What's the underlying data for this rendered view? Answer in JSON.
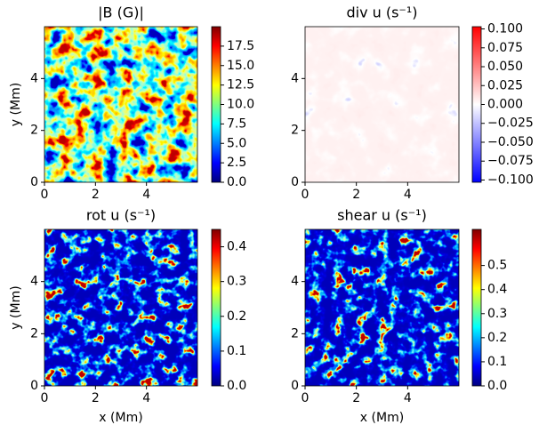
{
  "chart_data": [
    {
      "type": "heatmap",
      "title": "|B (G)|",
      "ylabel": "y (Mm)",
      "colormap": "jet",
      "xlim": [
        0,
        6
      ],
      "xticks": [
        0,
        2,
        4
      ],
      "ylim": [
        0,
        6
      ],
      "yticks": [
        0,
        2,
        4
      ],
      "clim": [
        0,
        20
      ],
      "cticks": [
        {
          "value": 0,
          "label": "0.0"
        },
        {
          "value": 2.5,
          "label": "2.5"
        },
        {
          "value": 5,
          "label": "5.0"
        },
        {
          "value": 7.5,
          "label": "7.5"
        },
        {
          "value": 10,
          "label": "10.0"
        },
        {
          "value": 12.5,
          "label": "12.5"
        },
        {
          "value": 15,
          "label": "15.0"
        },
        {
          "value": 17.5,
          "label": "17.5"
        }
      ]
    },
    {
      "type": "heatmap",
      "title": "div u (s⁻¹)",
      "colormap": "bwr",
      "xlim": [
        0,
        6
      ],
      "xticks": [
        0,
        2,
        4
      ],
      "ylim": [
        0,
        6
      ],
      "yticks": [
        0,
        2,
        4
      ],
      "clim": [
        -0.103,
        0.103
      ],
      "cticks": [
        {
          "value": -0.1,
          "label": "−0.100"
        },
        {
          "value": -0.075,
          "label": "−0.075"
        },
        {
          "value": -0.05,
          "label": "−0.050"
        },
        {
          "value": -0.025,
          "label": "−0.025"
        },
        {
          "value": 0,
          "label": "0.000"
        },
        {
          "value": 0.025,
          "label": "0.025"
        },
        {
          "value": 0.05,
          "label": "0.050"
        },
        {
          "value": 0.075,
          "label": "0.075"
        },
        {
          "value": 0.1,
          "label": "0.100"
        }
      ]
    },
    {
      "type": "heatmap",
      "title": "rot u (s⁻¹)",
      "ylabel": "y (Mm)",
      "xlabel": "x (Mm)",
      "colormap": "jet",
      "xlim": [
        0,
        6
      ],
      "xticks": [
        0,
        2,
        4
      ],
      "ylim": [
        0,
        6
      ],
      "yticks": [
        0,
        2,
        4
      ],
      "clim": [
        0,
        0.45
      ],
      "cticks": [
        {
          "value": 0,
          "label": "0.0"
        },
        0.1,
        0.2,
        0.3,
        0.4
      ]
    },
    {
      "type": "heatmap",
      "title": "shear u (s⁻¹)",
      "xlabel": "x (Mm)",
      "colormap": "jet",
      "xlim": [
        0,
        6
      ],
      "xticks": [
        0,
        2,
        4
      ],
      "ylim": [
        0,
        6
      ],
      "yticks": [
        0,
        2,
        4
      ],
      "clim": [
        0,
        0.65
      ],
      "cticks": [
        {
          "value": 0,
          "label": "0.0"
        },
        0.1,
        0.2,
        0.3,
        0.4,
        0.5
      ]
    }
  ]
}
